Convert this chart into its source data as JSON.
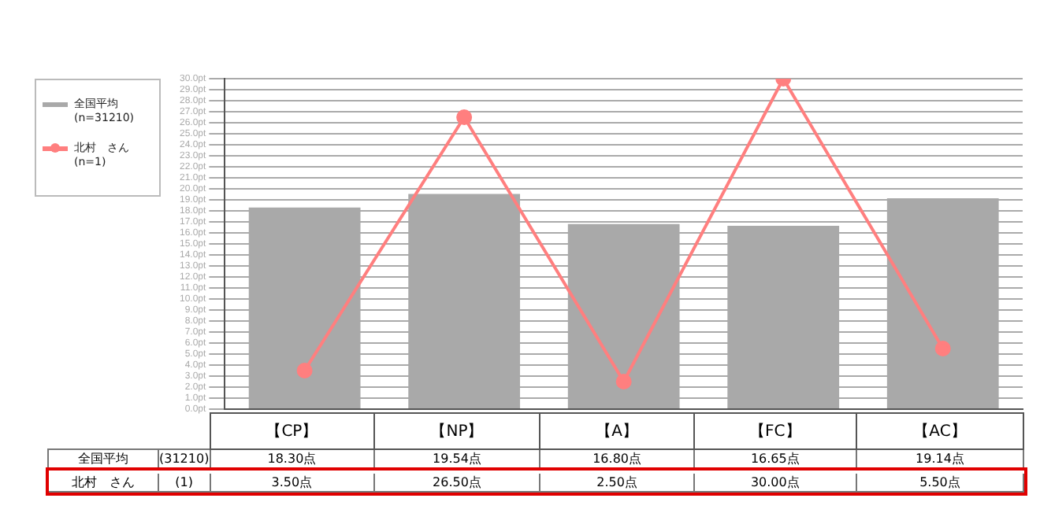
{
  "chart_data": {
    "type": "bar",
    "categories": [
      "【CP】",
      "【NP】",
      "【A】",
      "【FC】",
      "【AC】"
    ],
    "series": [
      {
        "name": "全国平均 (n=31210)",
        "color": "#a9a9a9",
        "values": [
          18.3,
          19.54,
          16.8,
          16.65,
          19.14
        ],
        "value_labels": [
          "18.30点",
          "19.54点",
          "16.80点",
          "16.65点",
          "19.14点"
        ]
      },
      {
        "name": "北村　さん (n=1)",
        "type": "line",
        "color": "#ff7f7f",
        "values": [
          3.5,
          26.5,
          2.5,
          30,
          5.5
        ],
        "value_labels": [
          "3.50点",
          "26.50点",
          "2.50点",
          "30.00点",
          "5.50点"
        ]
      }
    ],
    "ylim": [
      0,
      30
    ],
    "yticks": [
      {
        "value": 0,
        "label": "0.0pt"
      },
      {
        "value": 1,
        "label": "1.0pt"
      },
      {
        "value": 2,
        "label": "2.0pt"
      },
      {
        "value": 3,
        "label": "3.0pt"
      },
      {
        "value": 4,
        "label": "4.0pt"
      },
      {
        "value": 5,
        "label": "5.0pt"
      },
      {
        "value": 6,
        "label": "6.0pt"
      },
      {
        "value": 7,
        "label": "7.0pt"
      },
      {
        "value": 8,
        "label": "8.0pt"
      },
      {
        "value": 9,
        "label": "9.0pt"
      },
      {
        "value": 10,
        "label": "10.0pt"
      },
      {
        "value": 11,
        "label": "11.0pt"
      },
      {
        "value": 12,
        "label": "12.0pt"
      },
      {
        "value": 13,
        "label": "13.0pt"
      },
      {
        "value": 14,
        "label": "14.0pt"
      },
      {
        "value": 15,
        "label": "15.0pt"
      },
      {
        "value": 16,
        "label": "16.0pt"
      },
      {
        "value": 17,
        "label": "17.0pt"
      },
      {
        "value": 18,
        "label": "18.0pt"
      },
      {
        "value": 19,
        "label": "19.0pt"
      },
      {
        "value": 20,
        "label": "20.0pt"
      },
      {
        "value": 21,
        "label": "21.0pt"
      },
      {
        "value": 22,
        "label": "22.0pt"
      },
      {
        "value": 23,
        "label": "23.0pt"
      },
      {
        "value": 24,
        "label": "24.0pt"
      },
      {
        "value": 25,
        "label": "25.0pt"
      },
      {
        "value": 26,
        "label": "26.0pt"
      },
      {
        "value": 27,
        "label": "27.0pt"
      },
      {
        "value": 28,
        "label": "28.0pt"
      },
      {
        "value": 29,
        "label": "29.0pt"
      },
      {
        "value": 30,
        "label": "30.0pt"
      }
    ],
    "grid": "y",
    "legend": "left",
    "marker": "circle",
    "line_style": "solid",
    "annotations": [
      "全国平均",
      "(31210)",
      "北村　さん",
      "(1)"
    ]
  }
}
